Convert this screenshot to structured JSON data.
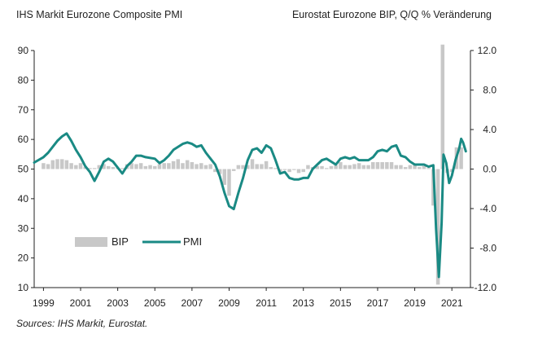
{
  "chart_data": {
    "type": "bar+line",
    "title_left": "IHS  Markit Eurozone Composite PMI",
    "title_right": "Eurostat Eurozone BIP,  Q/Q  % Veränderung",
    "source": "Sources: IHS Markit, Eurostat.",
    "x_ticks": [
      "1999",
      "2001",
      "2003",
      "2005",
      "2007",
      "2009",
      "2011",
      "2013",
      "2015",
      "2017",
      "2019",
      "2021"
    ],
    "left_axis": {
      "ticks": [
        "90",
        "80",
        "70",
        "60",
        "50",
        "40",
        "30",
        "20",
        "10"
      ],
      "ylim": [
        10,
        90
      ]
    },
    "right_axis": {
      "ticks": [
        "12.0",
        "8.0",
        "4.0",
        "0.0",
        "-4.0",
        "-8.0",
        "-12.0"
      ],
      "ylim": [
        -12,
        12
      ]
    },
    "grid": false,
    "legend_position": "lower-left",
    "legend": [
      {
        "label": "BIP",
        "color": "#c8c8c8"
      },
      {
        "label": "PMI",
        "color": "#1a8a84"
      }
    ],
    "series": [
      {
        "name": "PMI",
        "color": "#1a8a84",
        "points": [
          [
            1998.5,
            52.2
          ],
          [
            1999.0,
            54.0
          ],
          [
            1999.25,
            55.5
          ],
          [
            1999.5,
            57.5
          ],
          [
            1999.75,
            59.5
          ],
          [
            2000.0,
            61.0
          ],
          [
            2000.25,
            62.0
          ],
          [
            2000.5,
            59.5
          ],
          [
            2000.75,
            56.5
          ],
          [
            2001.0,
            54.0
          ],
          [
            2001.25,
            51.0
          ],
          [
            2001.5,
            49.0
          ],
          [
            2001.75,
            46.0
          ],
          [
            2002.0,
            49.0
          ],
          [
            2002.25,
            52.5
          ],
          [
            2002.5,
            53.5
          ],
          [
            2002.75,
            52.5
          ],
          [
            2003.0,
            50.5
          ],
          [
            2003.25,
            48.5
          ],
          [
            2003.5,
            51.0
          ],
          [
            2003.75,
            52.5
          ],
          [
            2004.0,
            54.5
          ],
          [
            2004.25,
            54.5
          ],
          [
            2004.5,
            54.0
          ],
          [
            2005.0,
            53.5
          ],
          [
            2005.25,
            52.0
          ],
          [
            2005.5,
            53.0
          ],
          [
            2005.75,
            54.5
          ],
          [
            2006.0,
            56.5
          ],
          [
            2006.25,
            57.5
          ],
          [
            2006.5,
            58.5
          ],
          [
            2006.75,
            59.0
          ],
          [
            2007.0,
            58.5
          ],
          [
            2007.25,
            57.5
          ],
          [
            2007.5,
            58.0
          ],
          [
            2007.75,
            55.5
          ],
          [
            2008.0,
            53.5
          ],
          [
            2008.25,
            51.5
          ],
          [
            2008.5,
            47.5
          ],
          [
            2008.75,
            42.0
          ],
          [
            2009.0,
            37.5
          ],
          [
            2009.25,
            36.5
          ],
          [
            2009.5,
            42.0
          ],
          [
            2009.75,
            47.0
          ],
          [
            2010.0,
            53.0
          ],
          [
            2010.25,
            56.5
          ],
          [
            2010.5,
            57.0
          ],
          [
            2010.75,
            55.5
          ],
          [
            2011.0,
            58.0
          ],
          [
            2011.25,
            57.0
          ],
          [
            2011.5,
            53.0
          ],
          [
            2011.75,
            48.5
          ],
          [
            2012.0,
            49.0
          ],
          [
            2012.25,
            47.0
          ],
          [
            2012.5,
            46.5
          ],
          [
            2012.75,
            46.5
          ],
          [
            2013.0,
            47.0
          ],
          [
            2013.25,
            47.0
          ],
          [
            2013.5,
            50.0
          ],
          [
            2013.75,
            51.5
          ],
          [
            2014.0,
            53.0
          ],
          [
            2014.25,
            53.5
          ],
          [
            2014.5,
            52.5
          ],
          [
            2014.75,
            51.5
          ],
          [
            2015.0,
            53.5
          ],
          [
            2015.25,
            54.0
          ],
          [
            2015.5,
            53.5
          ],
          [
            2015.75,
            54.0
          ],
          [
            2016.0,
            53.0
          ],
          [
            2016.25,
            53.0
          ],
          [
            2016.5,
            53.0
          ],
          [
            2016.75,
            54.0
          ],
          [
            2017.0,
            56.0
          ],
          [
            2017.25,
            56.5
          ],
          [
            2017.5,
            56.0
          ],
          [
            2017.75,
            57.5
          ],
          [
            2018.0,
            58.0
          ],
          [
            2018.25,
            54.5
          ],
          [
            2018.5,
            54.0
          ],
          [
            2018.75,
            52.5
          ],
          [
            2019.0,
            51.5
          ],
          [
            2019.25,
            51.5
          ],
          [
            2019.5,
            51.5
          ],
          [
            2019.75,
            50.8
          ],
          [
            2020.0,
            51.3
          ],
          [
            2020.15,
            29.7
          ],
          [
            2020.3,
            13.6
          ],
          [
            2020.45,
            31.9
          ],
          [
            2020.55,
            54.9
          ],
          [
            2020.7,
            52.0
          ],
          [
            2020.85,
            45.3
          ],
          [
            2021.0,
            47.8
          ],
          [
            2021.2,
            53.2
          ],
          [
            2021.4,
            57.1
          ],
          [
            2021.5,
            60.2
          ],
          [
            2021.6,
            59.0
          ],
          [
            2021.75,
            56.0
          ]
        ]
      },
      {
        "name": "BIP",
        "color": "#c8c8c8",
        "points": [
          [
            1999.0,
            0.6
          ],
          [
            1999.25,
            0.5
          ],
          [
            1999.5,
            0.9
          ],
          [
            1999.75,
            1.0
          ],
          [
            2000.0,
            1.0
          ],
          [
            2000.25,
            0.9
          ],
          [
            2000.5,
            0.6
          ],
          [
            2000.75,
            0.4
          ],
          [
            2001.0,
            0.6
          ],
          [
            2001.25,
            0.2
          ],
          [
            2001.5,
            0.1
          ],
          [
            2001.75,
            0.1
          ],
          [
            2002.0,
            0.4
          ],
          [
            2002.25,
            0.5
          ],
          [
            2002.5,
            0.3
          ],
          [
            2002.75,
            0.2
          ],
          [
            2003.0,
            0.1
          ],
          [
            2003.25,
            0.1
          ],
          [
            2003.5,
            0.5
          ],
          [
            2003.75,
            0.6
          ],
          [
            2004.0,
            0.5
          ],
          [
            2004.25,
            0.6
          ],
          [
            2004.5,
            0.3
          ],
          [
            2004.75,
            0.4
          ],
          [
            2005.0,
            0.3
          ],
          [
            2005.25,
            0.5
          ],
          [
            2005.5,
            0.6
          ],
          [
            2005.75,
            0.6
          ],
          [
            2006.0,
            0.8
          ],
          [
            2006.25,
            1.0
          ],
          [
            2006.5,
            0.6
          ],
          [
            2006.75,
            0.9
          ],
          [
            2007.0,
            0.7
          ],
          [
            2007.25,
            0.5
          ],
          [
            2007.5,
            0.6
          ],
          [
            2007.75,
            0.4
          ],
          [
            2008.0,
            0.5
          ],
          [
            2008.25,
            -0.3
          ],
          [
            2008.5,
            -0.5
          ],
          [
            2008.75,
            -1.6
          ],
          [
            2009.0,
            -2.7
          ],
          [
            2009.25,
            -0.2
          ],
          [
            2009.5,
            0.4
          ],
          [
            2009.75,
            0.4
          ],
          [
            2010.0,
            0.4
          ],
          [
            2010.25,
            1.0
          ],
          [
            2010.5,
            0.5
          ],
          [
            2010.75,
            0.5
          ],
          [
            2011.0,
            0.8
          ],
          [
            2011.25,
            0.2
          ],
          [
            2011.5,
            0.1
          ],
          [
            2011.75,
            -0.3
          ],
          [
            2012.0,
            -0.1
          ],
          [
            2012.25,
            -0.3
          ],
          [
            2012.5,
            -0.1
          ],
          [
            2012.75,
            -0.4
          ],
          [
            2013.0,
            -0.3
          ],
          [
            2013.25,
            0.4
          ],
          [
            2013.5,
            0.2
          ],
          [
            2013.75,
            0.3
          ],
          [
            2014.0,
            0.3
          ],
          [
            2014.25,
            0.1
          ],
          [
            2014.5,
            0.3
          ],
          [
            2014.75,
            0.4
          ],
          [
            2015.0,
            0.7
          ],
          [
            2015.25,
            0.4
          ],
          [
            2015.5,
            0.4
          ],
          [
            2015.75,
            0.5
          ],
          [
            2016.0,
            0.6
          ],
          [
            2016.25,
            0.4
          ],
          [
            2016.5,
            0.4
          ],
          [
            2016.75,
            0.7
          ],
          [
            2017.0,
            0.7
          ],
          [
            2017.25,
            0.7
          ],
          [
            2017.5,
            0.7
          ],
          [
            2017.75,
            0.7
          ],
          [
            2018.0,
            0.4
          ],
          [
            2018.25,
            0.4
          ],
          [
            2018.5,
            0.2
          ],
          [
            2018.75,
            0.4
          ],
          [
            2019.0,
            0.5
          ],
          [
            2019.25,
            0.2
          ],
          [
            2019.5,
            0.3
          ],
          [
            2019.75,
            0.1
          ],
          [
            2020.0,
            -3.7
          ],
          [
            2020.25,
            -11.7
          ],
          [
            2020.5,
            12.6
          ],
          [
            2020.75,
            -0.4
          ],
          [
            2021.0,
            -0.3
          ],
          [
            2021.25,
            2.2
          ],
          [
            2021.5,
            2.2
          ]
        ]
      }
    ]
  }
}
